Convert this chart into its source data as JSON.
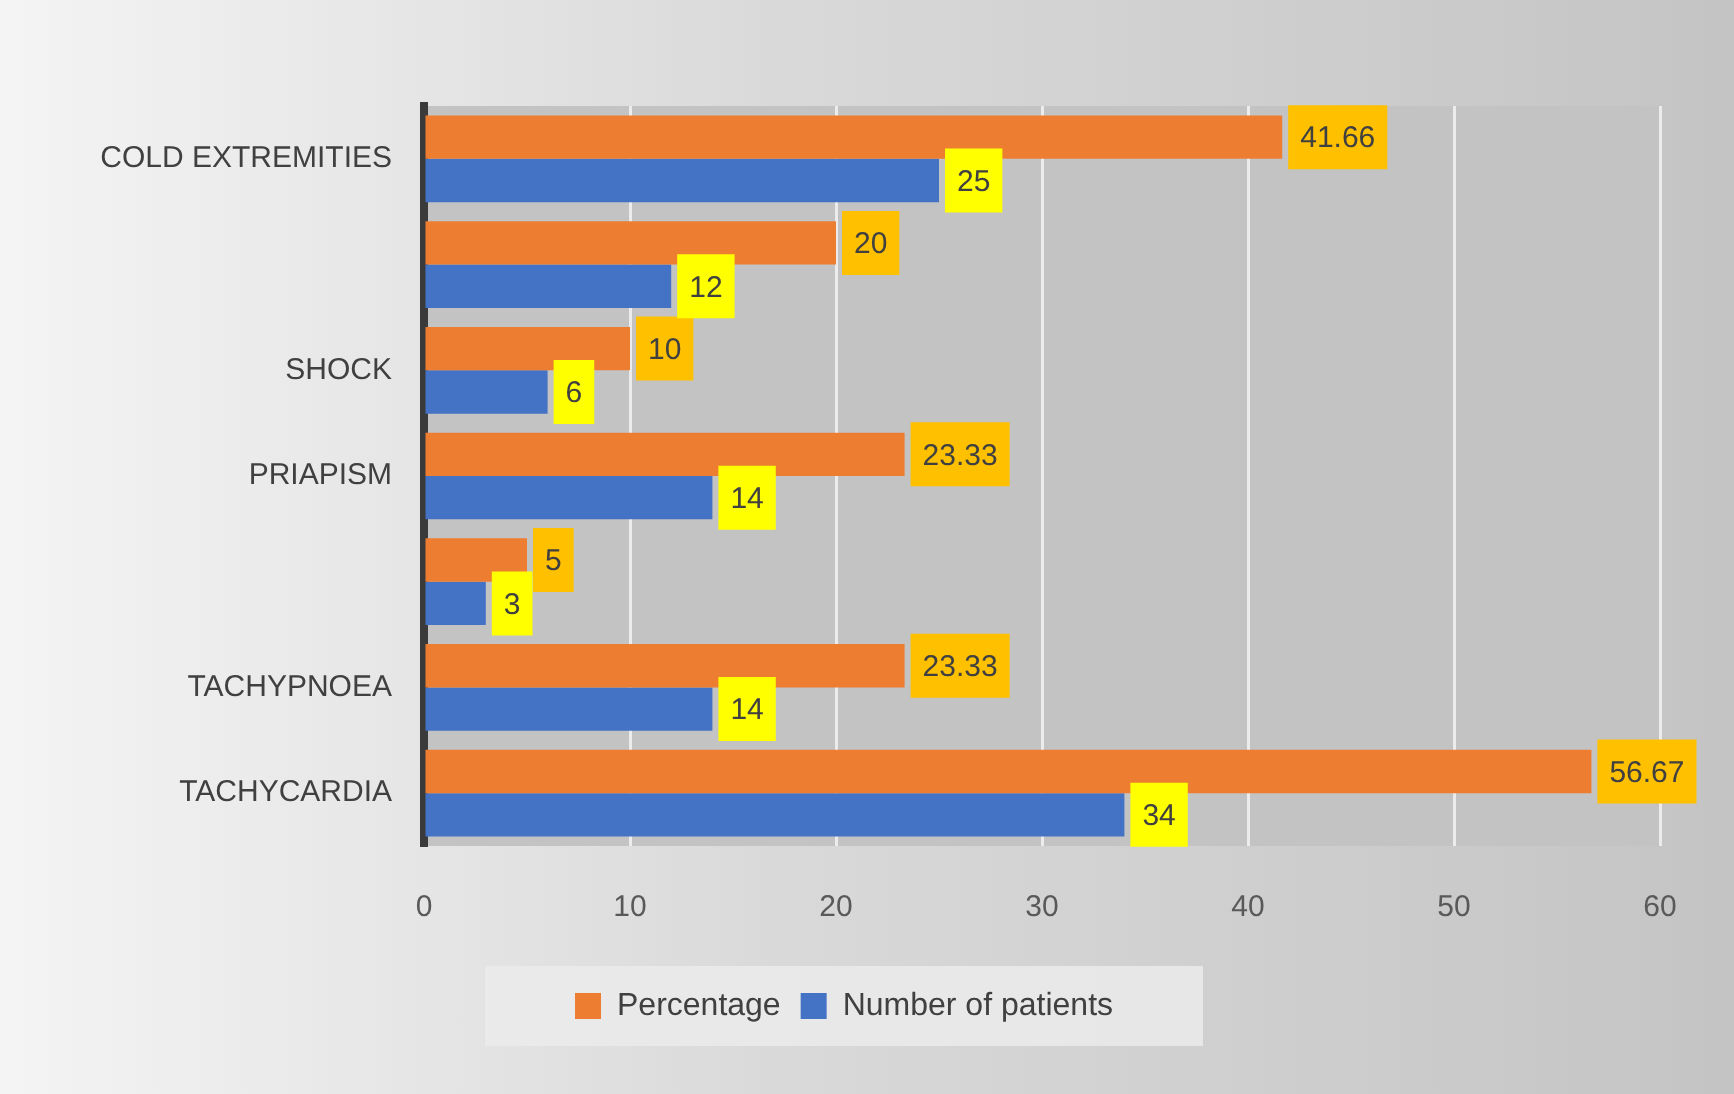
{
  "chart_data": {
    "type": "bar",
    "orientation": "horizontal",
    "categories": [
      "COLD EXTREMITIES",
      null,
      "SHOCK",
      "PRIAPISM",
      null,
      "TACHYPNOEA",
      "TACHYCARDIA"
    ],
    "series": [
      {
        "name": "Percentage",
        "color": "#ed7d31",
        "values": [
          41.66,
          20,
          10,
          23.33,
          5,
          23.33,
          56.67
        ]
      },
      {
        "name": "Number of patients",
        "color": "#4472c4",
        "values": [
          25,
          12,
          6,
          14,
          3,
          14,
          34
        ]
      }
    ],
    "xlim": [
      0,
      60
    ],
    "xticks": [
      0,
      10,
      20,
      30,
      40,
      50,
      60
    ],
    "grid": "x",
    "legend": "bottom",
    "data_labels": true
  }
}
